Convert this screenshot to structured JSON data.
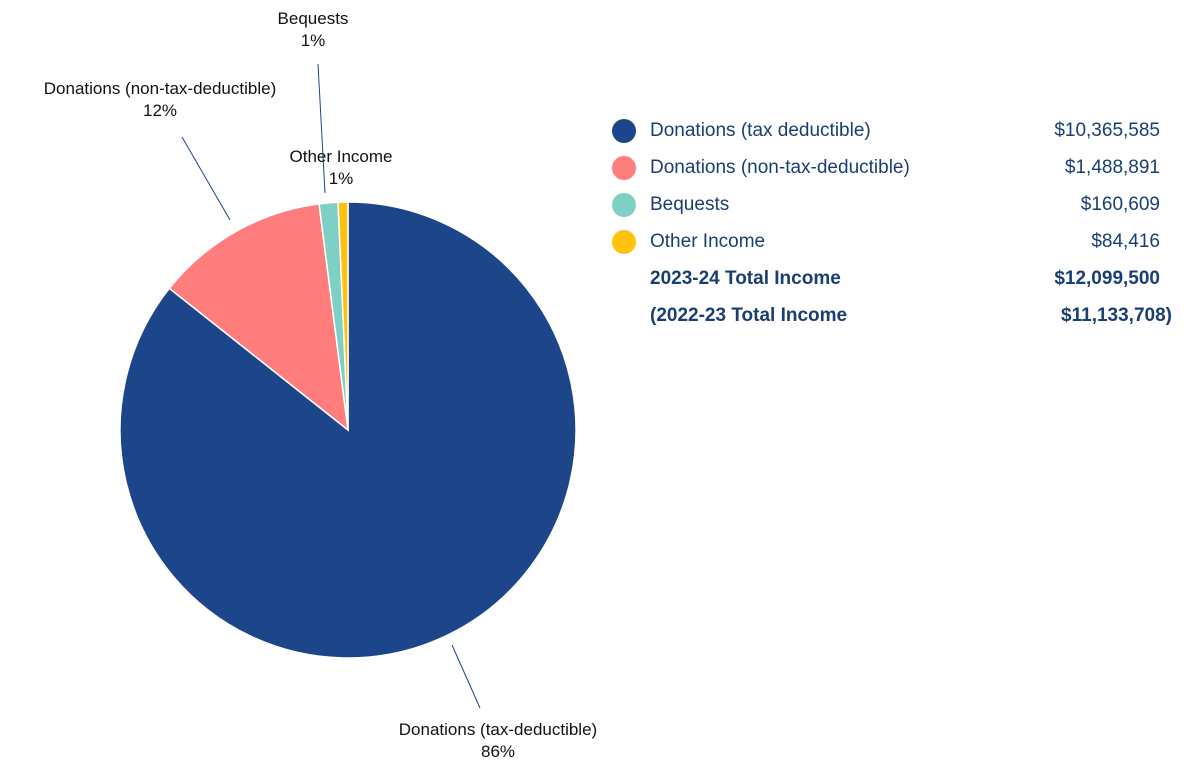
{
  "chart_data": {
    "type": "pie",
    "slices": [
      {
        "name": "Donations (tax-deductible)",
        "percent_label": "86%",
        "value": 10365585,
        "color": "#1c4689"
      },
      {
        "name": "Donations (non-tax-deductible)",
        "percent_label": "12%",
        "value": 1488891,
        "color": "#ff7d7d"
      },
      {
        "name": "Bequests",
        "percent_label": "1%",
        "value": 160609,
        "color": "#7fd0c4"
      },
      {
        "name": "Other Income",
        "percent_label": "1%",
        "value": 84416,
        "color": "#ffc20e"
      }
    ]
  },
  "legend": {
    "items": [
      {
        "label": "Donations (tax deductible)",
        "value": "$10,365,585",
        "color": "#1c4689"
      },
      {
        "label": "Donations (non-tax-deductible)",
        "value": "$1,488,891",
        "color": "#ff7d7d"
      },
      {
        "label": "Bequests",
        "value": "$160,609",
        "color": "#7fd0c4"
      },
      {
        "label": "Other Income",
        "value": "$84,416",
        "color": "#ffc20e"
      }
    ],
    "totals": [
      {
        "label": "2023-24 Total Income",
        "value": "$12,099,500"
      },
      {
        "label": "(2022-23 Total Income",
        "value": "$11,133,708)"
      }
    ]
  }
}
